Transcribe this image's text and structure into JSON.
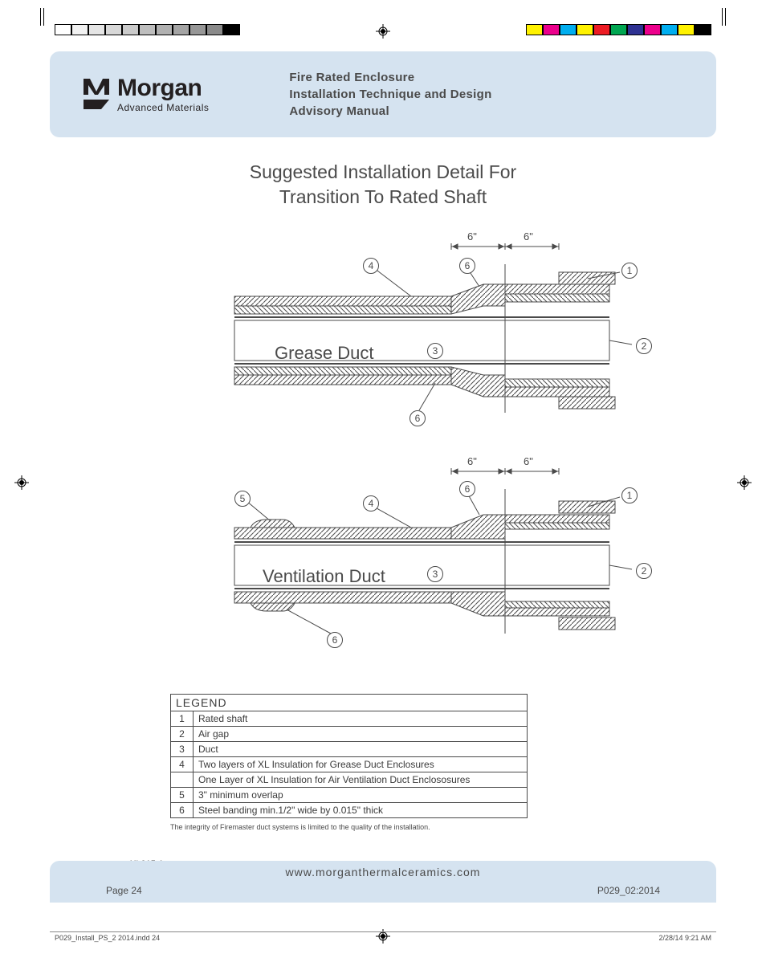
{
  "print_marks": {
    "gray_bar": [
      "#ffffff",
      "#f2f2f2",
      "#e5e5e5",
      "#d8d8d8",
      "#cbcbcb",
      "#bebebe",
      "#b1b1b1",
      "#a4a4a4",
      "#979797",
      "#8a8a8a",
      "#000000"
    ],
    "color_bar": [
      "#fff200",
      "#ec008c",
      "#00aeef",
      "#fff200",
      "#ed1c24",
      "#00a651",
      "#2e3192",
      "#ec008c",
      "#00aeef",
      "#fff200",
      "#000000"
    ]
  },
  "logo": {
    "name": "Morgan",
    "sub": "Advanced Materials"
  },
  "header": {
    "line1": "Fire Rated Enclosure",
    "line2": "Installation Technique and Design",
    "line3": "Advisory Manual"
  },
  "title": {
    "line1": "Suggested Installation Detail For",
    "line2": "Transition To Rated Shaft"
  },
  "diagrams": {
    "top": {
      "label": "Grease Duct",
      "dims": [
        "6\"",
        "6\""
      ],
      "callouts": [
        "4",
        "6",
        "1",
        "2",
        "3",
        "6"
      ]
    },
    "bottom": {
      "label": "Ventilation Duct",
      "dims": [
        "6\"",
        "6\""
      ],
      "callouts": [
        "5",
        "4",
        "6",
        "1",
        "2",
        "3",
        "6"
      ]
    }
  },
  "legend": {
    "header": "LEGEND",
    "rows": [
      {
        "n": "1",
        "t": "Rated shaft"
      },
      {
        "n": "2",
        "t": "Air gap"
      },
      {
        "n": "3",
        "t": "Duct"
      },
      {
        "n": "4",
        "t": "Two layers of XL Insulation for Grease Duct Enclosures"
      },
      {
        "n": "",
        "t": "One Layer of XL Insulation for Air Ventilation Duct Enclososures"
      },
      {
        "n": "5",
        "t": "3\" minimum overlap"
      },
      {
        "n": "6",
        "t": "Steel banding min.1/2\" wide by 0.015\" thick"
      }
    ]
  },
  "footnote": "The integrity of Firemaster duct systems is limited to the quality of the installation.",
  "doc_code": "XL015-1",
  "footer": {
    "url": "www.morganthermalceramics.com",
    "page": "Page 24",
    "ref": "P029_02:2014"
  },
  "slug": {
    "file": "P029_Install_PS_2 2014.indd   24",
    "stamp": "2/28/14   9:21 AM"
  },
  "colors": {
    "panel": "#d5e3f0",
    "text": "#4a4a4a"
  }
}
